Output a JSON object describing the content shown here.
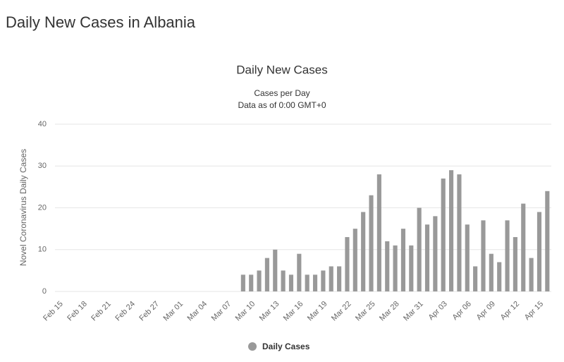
{
  "page_title": "Daily New Cases in Albania",
  "chart_data": {
    "type": "bar",
    "title": "Daily New Cases",
    "subtitle": [
      "Cases per Day",
      "Data as of 0:00 GMT+0"
    ],
    "y_label": "Novel Coronavirus Daily Cases",
    "categories": [
      "Feb 15",
      null,
      null,
      "Feb 18",
      null,
      null,
      "Feb 21",
      null,
      null,
      "Feb 24",
      null,
      null,
      "Feb 27",
      null,
      null,
      "Mar 01",
      null,
      null,
      "Mar 04",
      null,
      null,
      "Mar 07",
      null,
      null,
      "Mar 10",
      null,
      null,
      "Mar 13",
      null,
      null,
      "Mar 16",
      null,
      null,
      "Mar 19",
      null,
      null,
      "Mar 22",
      null,
      null,
      "Mar 25",
      null,
      null,
      "Mar 28",
      null,
      null,
      "Mar 31",
      null,
      null,
      "Apr 03",
      null,
      null,
      "Apr 06",
      null,
      null,
      "Apr 09",
      null,
      null,
      "Apr 12",
      null,
      null,
      "Apr 15",
      null
    ],
    "series": [
      {
        "name": "Daily Cases",
        "color": "#999999",
        "values": [
          0,
          0,
          0,
          0,
          0,
          0,
          0,
          0,
          0,
          0,
          0,
          0,
          0,
          0,
          0,
          0,
          0,
          0,
          0,
          0,
          0,
          0,
          0,
          4,
          4,
          5,
          8,
          10,
          5,
          4,
          9,
          4,
          4,
          5,
          6,
          6,
          13,
          15,
          19,
          23,
          28,
          12,
          11,
          15,
          11,
          20,
          16,
          18,
          27,
          29,
          28,
          16,
          6,
          17,
          9,
          7,
          17,
          13,
          21,
          8,
          19,
          24
        ]
      }
    ],
    "ylim": [
      0,
      40
    ],
    "yticks": [
      0,
      10,
      20,
      30,
      40
    ],
    "grid": true,
    "legend": "bottom"
  }
}
